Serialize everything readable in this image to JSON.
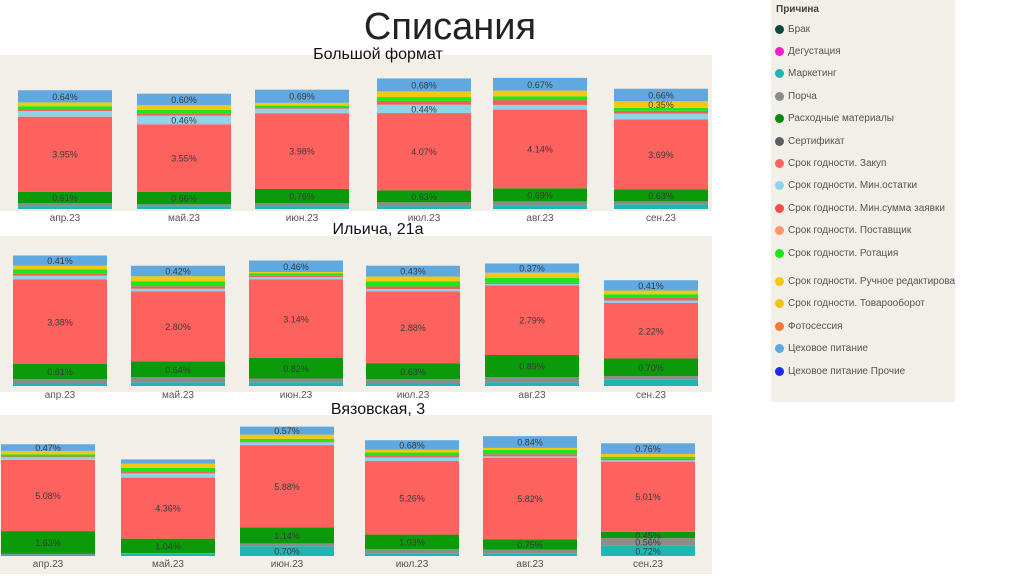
{
  "page_title": "Списания",
  "legend": {
    "title": "Причина",
    "items": [
      {
        "label": "Брак",
        "color": "#0b4a3a"
      },
      {
        "label": "Дегустация",
        "color": "#f21ccb"
      },
      {
        "label": "Маркетинг",
        "color": "#1fb5b0"
      },
      {
        "label": "Порча",
        "color": "#8c8c8c"
      },
      {
        "label": "Расходные материалы",
        "color": "#0a8a0a"
      },
      {
        "label": "Сертификат",
        "color": "#5a5f5f"
      },
      {
        "label": "Срок годности. Закуп",
        "color": "#fd625e"
      },
      {
        "label": "Срок годности. Мин.остатки",
        "color": "#8fd3e8"
      },
      {
        "label": "Срок годности. Мин.сумма заявки",
        "color": "#f0504a"
      },
      {
        "label": "Срок годности. Поставщик",
        "color": "#fe9666"
      },
      {
        "label": "Срок годности. Ротация",
        "color": "#1be81b"
      },
      {
        "label": "Срок годности. Ручное редактирование",
        "color": "#f2c811"
      },
      {
        "label": "Срок годности. Товарооборот",
        "color": "#f2c40f"
      },
      {
        "label": "Фотосессия",
        "color": "#f5793a"
      },
      {
        "label": "Цеховое питание",
        "color": "#5fa8e0"
      },
      {
        "label": "Цеховое питание Прочие",
        "color": "#1a2cf0"
      }
    ]
  },
  "chart_data": [
    {
      "type": "bar",
      "stacked": true,
      "title": "Большой формат",
      "categories": [
        "апр.23",
        "май.23",
        "июн.23",
        "июл.23",
        "авг.23",
        "сен.23"
      ],
      "series": [
        {
          "name": "Маркетинг",
          "color": "#1fb5b0",
          "values": [
            0.15,
            0.15,
            0.15,
            0.15,
            0.2,
            0.25
          ]
        },
        {
          "name": "Порча",
          "color": "#8c8c8c",
          "values": [
            0.15,
            0.1,
            0.15,
            0.2,
            0.2,
            0.15
          ]
        },
        {
          "name": "Расходные материалы",
          "color": "#0a9a0a",
          "values": [
            0.61,
            0.66,
            0.76,
            0.63,
            0.69,
            0.63
          ]
        },
        {
          "name": "Срок годности. Закуп",
          "color": "#fd625e",
          "values": [
            3.95,
            3.55,
            3.98,
            4.07,
            4.14,
            3.69
          ]
        },
        {
          "name": "Срок годности. Мин.остатки",
          "color": "#8fd3e8",
          "values": [
            0.3,
            0.46,
            0.25,
            0.44,
            0.25,
            0.3
          ]
        },
        {
          "name": "Срок годности. Мин.сумма заявки",
          "color": "#f0605a",
          "values": [
            0.1,
            0.1,
            0.05,
            0.2,
            0.25,
            0.15
          ]
        },
        {
          "name": "Срок годности. Ротация",
          "color": "#1be81b",
          "values": [
            0.15,
            0.2,
            0.1,
            0.2,
            0.2,
            0.15
          ]
        },
        {
          "name": "Срок годности. Товарооборот",
          "color": "#f2c811",
          "values": [
            0.2,
            0.25,
            0.15,
            0.3,
            0.3,
            0.35
          ]
        },
        {
          "name": "Цеховое питание",
          "color": "#5fa8e0",
          "values": [
            0.64,
            0.6,
            0.69,
            0.68,
            0.67,
            0.66
          ]
        }
      ]
    },
    {
      "type": "bar",
      "stacked": true,
      "title": "Ильича, 21а",
      "categories": [
        "апр.23",
        "май.23",
        "июн.23",
        "июл.23",
        "авг.23",
        "сен.23"
      ],
      "series": [
        {
          "name": "Маркетинг",
          "color": "#1fb5b0",
          "values": [
            0.12,
            0.15,
            0.15,
            0.12,
            0.15,
            0.25
          ]
        },
        {
          "name": "Порча",
          "color": "#8c8c8c",
          "values": [
            0.15,
            0.2,
            0.15,
            0.15,
            0.2,
            0.15
          ]
        },
        {
          "name": "Расходные материалы",
          "color": "#0a9a0a",
          "values": [
            0.61,
            0.64,
            0.82,
            0.63,
            0.89,
            0.7
          ]
        },
        {
          "name": "Срок годности. Закуп",
          "color": "#fd625e",
          "values": [
            3.38,
            2.8,
            3.14,
            2.88,
            2.79,
            2.22
          ]
        },
        {
          "name": "Срок годности. Мин.остатки",
          "color": "#8fd3e8",
          "values": [
            0.15,
            0.1,
            0.1,
            0.1,
            0.05,
            0.1
          ]
        },
        {
          "name": "Срок годности. Мин.сумма заявки",
          "color": "#f0605a",
          "values": [
            0.1,
            0.1,
            0.05,
            0.1,
            0.05,
            0.1
          ]
        },
        {
          "name": "Срок годности. Ротация",
          "color": "#1be81b",
          "values": [
            0.15,
            0.2,
            0.1,
            0.2,
            0.2,
            0.15
          ]
        },
        {
          "name": "Срок годности. Товарооборот",
          "color": "#f2c811",
          "values": [
            0.15,
            0.2,
            0.05,
            0.2,
            0.2,
            0.15
          ]
        },
        {
          "name": "Цеховое питание",
          "color": "#5fa8e0",
          "values": [
            0.41,
            0.42,
            0.46,
            0.43,
            0.37,
            0.41
          ]
        }
      ]
    },
    {
      "type": "bar",
      "stacked": true,
      "title": "Вязовская, 3",
      "categories": [
        "апр.23",
        "май.23",
        "июн.23",
        "июл.23",
        "авг.23",
        "сен.23"
      ],
      "series": [
        {
          "name": "Маркетинг",
          "color": "#1fb5b0",
          "values": [
            0.1,
            0.15,
            0.7,
            0.2,
            0.2,
            0.72
          ]
        },
        {
          "name": "Порча",
          "color": "#8c8c8c",
          "values": [
            0.05,
            0.05,
            0.2,
            0.3,
            0.25,
            0.56
          ]
        },
        {
          "name": "Расходные материалы",
          "color": "#0a9a0a",
          "values": [
            1.63,
            1.04,
            1.14,
            1.03,
            0.75,
            0.45
          ]
        },
        {
          "name": "Срок годности. Закуп",
          "color": "#fd625e",
          "values": [
            5.08,
            4.36,
            5.88,
            5.26,
            5.82,
            5.01
          ]
        },
        {
          "name": "Срок годности. Мин.остатки",
          "color": "#8fd3e8",
          "values": [
            0.2,
            0.3,
            0.2,
            0.25,
            0.1,
            0.1
          ]
        },
        {
          "name": "Срок годности. Мин.сумма заявки",
          "color": "#f0605a",
          "values": [
            0.05,
            0.1,
            0.05,
            0.1,
            0.15,
            0.1
          ]
        },
        {
          "name": "Срок годности. Ротация",
          "color": "#1be81b",
          "values": [
            0.15,
            0.3,
            0.2,
            0.25,
            0.3,
            0.15
          ]
        },
        {
          "name": "Срок годности. Товарооборот",
          "color": "#f2c811",
          "values": [
            0.25,
            0.3,
            0.3,
            0.2,
            0.15,
            0.2
          ]
        },
        {
          "name": "Цеховое питание",
          "color": "#5fa8e0",
          "values": [
            0.47,
            0.3,
            0.57,
            0.68,
            0.84,
            0.76
          ]
        }
      ]
    }
  ]
}
